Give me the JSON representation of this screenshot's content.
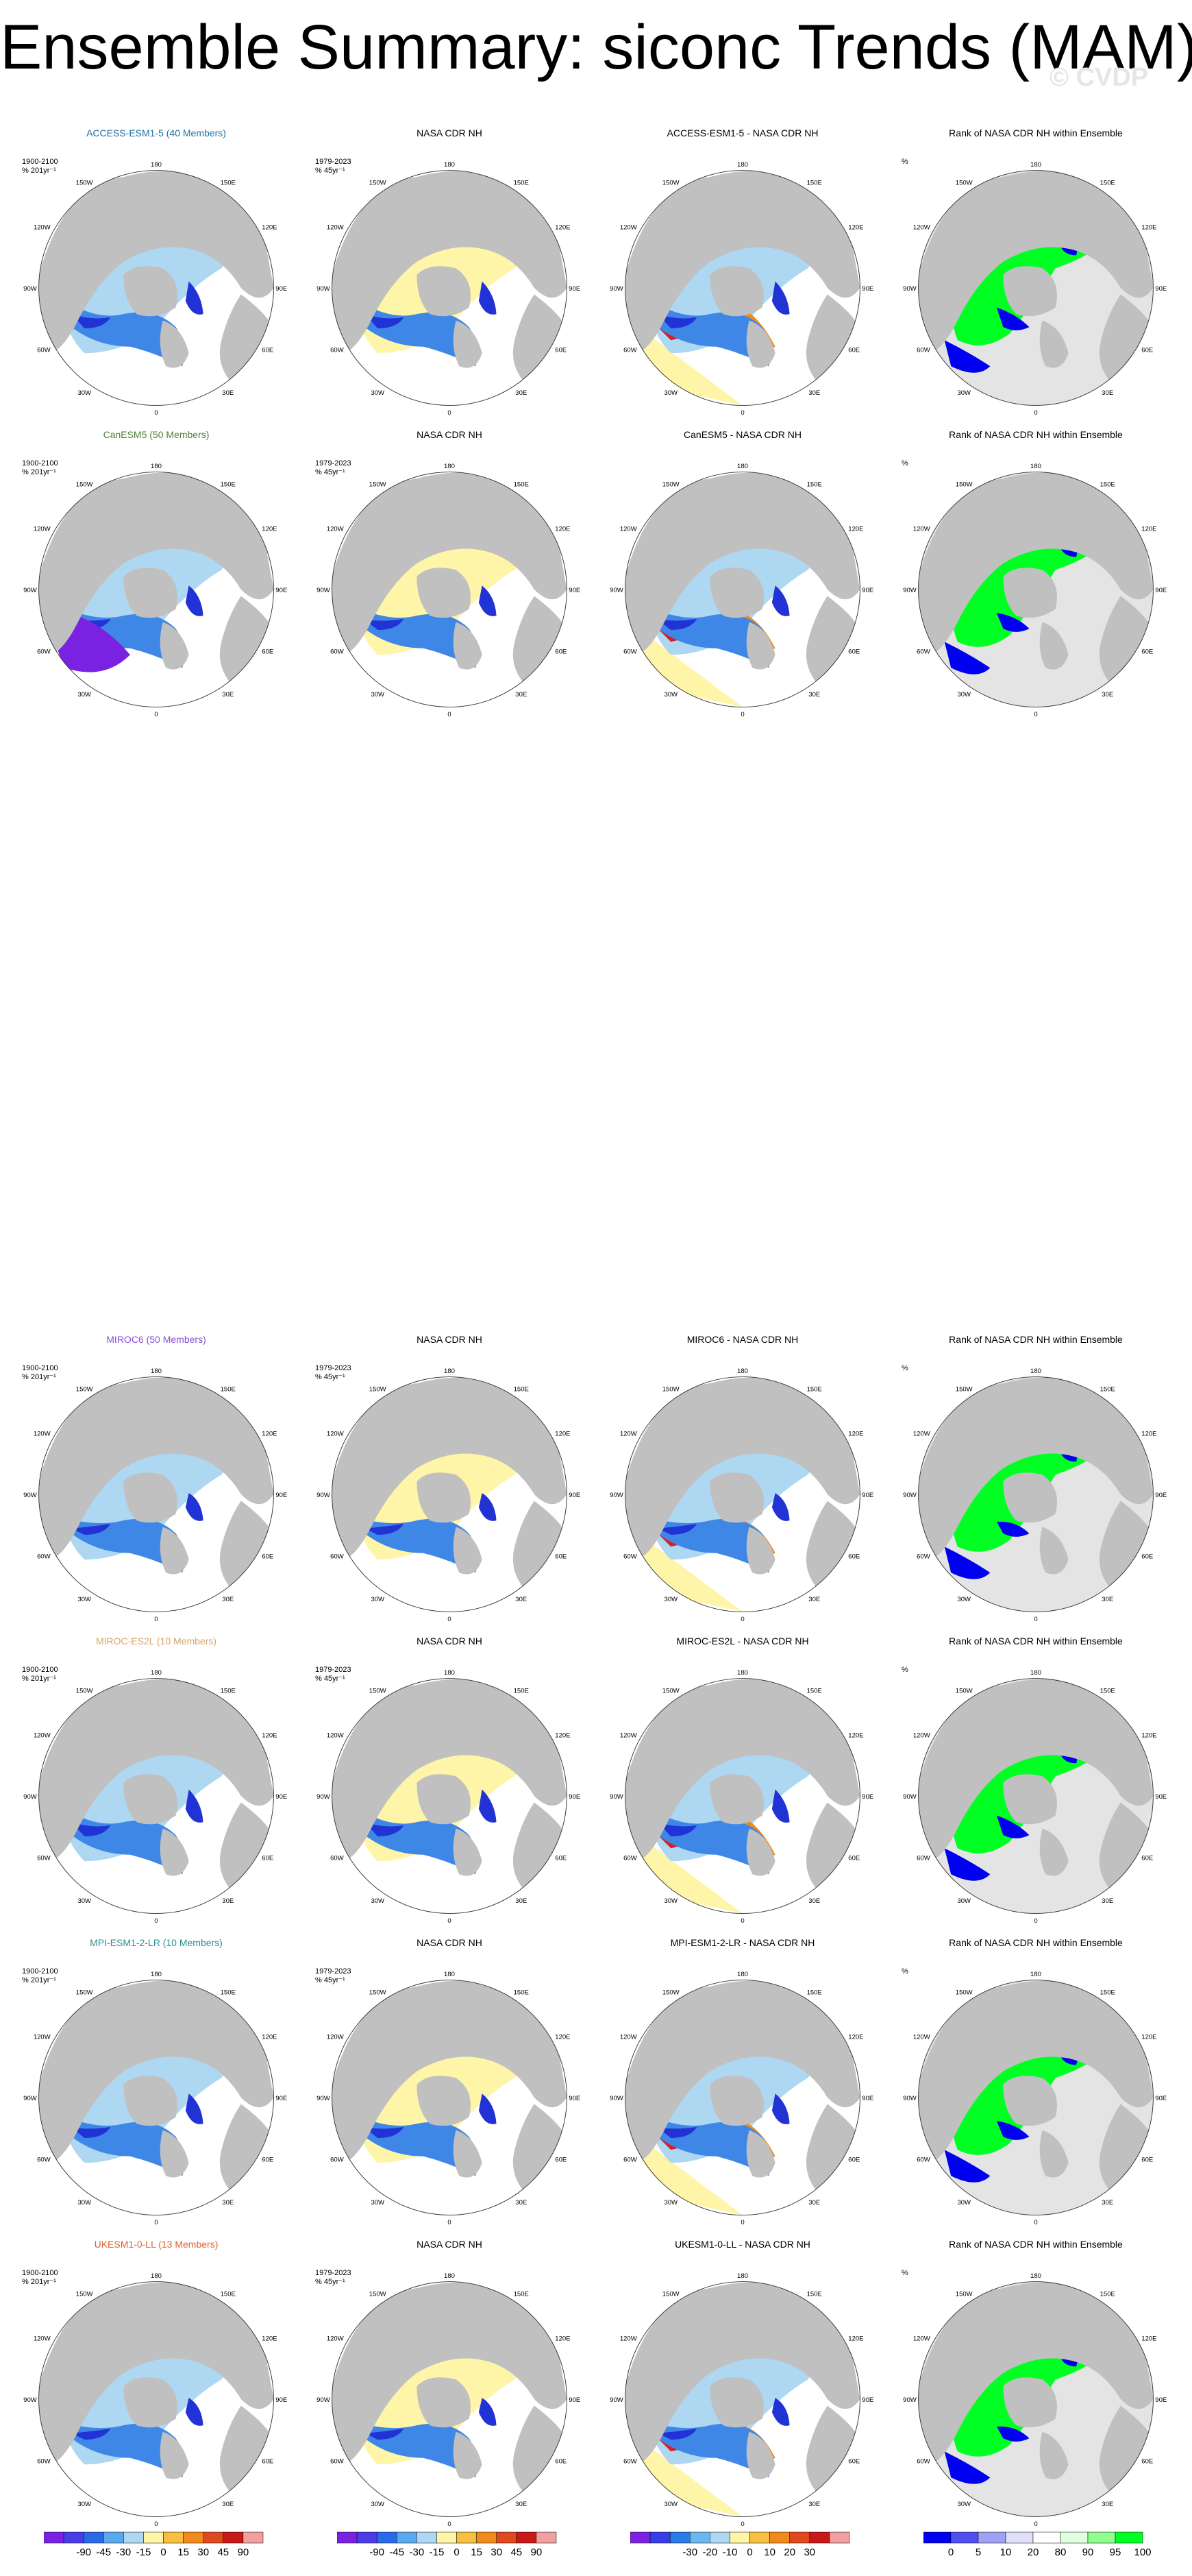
{
  "title": "Ensemble Summary: siconc Trends (MAM)",
  "watermark": "© CVDP",
  "colors": {
    "land": "#c0c0c0",
    "ocean_ring": "#ffffff",
    "light_blue": "#aed7f2",
    "mid_blue": "#3f87e6",
    "dark_blue": "#2233d6",
    "purple": "#7a22e2",
    "light_yellow": "#fff5a8",
    "orange": "#f08a1a",
    "red": "#d82020",
    "green": "#00ff22",
    "rank_blue": "#0000f0",
    "rank_gray": "#e4e4e4"
  },
  "lon_labels": [
    "180",
    "150W",
    "150E",
    "120W",
    "120E",
    "90W",
    "90E",
    "60W",
    "60E",
    "30W",
    "30E",
    "0"
  ],
  "rows": [
    {
      "model": "ACCESS-ESM1-5 (40 Members)",
      "model_color": "#1b6fa0",
      "model_info": "1900-2100\n% 201yr⁻¹",
      "obs_title": "NASA CDR NH",
      "obs_info": "1979-2023\n% 45yr⁻¹",
      "diff_title": "ACCESS-ESM1-5 - NASA CDR NH",
      "rank_title": "Rank of NASA CDR NH within Ensemble",
      "rank_info": "%"
    },
    {
      "model": "CanESM5 (50 Members)",
      "model_color": "#4f7f3a",
      "model_info": "1900-2100\n% 201yr⁻¹",
      "obs_title": "NASA CDR NH",
      "obs_info": "1979-2023\n% 45yr⁻¹",
      "diff_title": "CanESM5 - NASA CDR NH",
      "rank_title": "Rank of NASA CDR NH within Ensemble",
      "rank_info": "%"
    },
    {
      "model": "MIROC6 (50 Members)",
      "model_color": "#8a4fd8",
      "model_info": "1900-2100\n% 201yr⁻¹",
      "obs_title": "NASA CDR NH",
      "obs_info": "1979-2023\n% 45yr⁻¹",
      "diff_title": "MIROC6 - NASA CDR NH",
      "rank_title": "Rank of NASA CDR NH within Ensemble",
      "rank_info": "%"
    },
    {
      "model": "MIROC-ES2L (10 Members)",
      "model_color": "#d8a46a",
      "model_info": "1900-2100\n% 201yr⁻¹",
      "obs_title": "NASA CDR NH",
      "obs_info": "1979-2023\n% 45yr⁻¹",
      "diff_title": "MIROC-ES2L - NASA CDR NH",
      "rank_title": "Rank of NASA CDR NH within Ensemble",
      "rank_info": "%"
    },
    {
      "model": "MPI-ESM1-2-LR (10 Members)",
      "model_color": "#2f8f8f",
      "model_info": "1900-2100\n% 201yr⁻¹",
      "obs_title": "NASA CDR NH",
      "obs_info": "1979-2023\n% 45yr⁻¹",
      "diff_title": "MPI-ESM1-2-LR - NASA CDR NH",
      "rank_title": "Rank of NASA CDR NH within Ensemble",
      "rank_info": "%"
    },
    {
      "model": "UKESM1-0-LL (13 Members)",
      "model_color": "#e0622a",
      "model_info": "1900-2100\n% 201yr⁻¹",
      "obs_title": "NASA CDR NH",
      "obs_info": "1979-2023\n% 45yr⁻¹",
      "diff_title": "UKESM1-0-LL - NASA CDR NH",
      "rank_title": "Rank of NASA CDR NH within Ensemble",
      "rank_info": "%"
    }
  ],
  "colorbars": [
    {
      "name": "trend-colorbar-model",
      "labels": [
        "-90",
        "-45",
        "-30",
        "-15",
        "0",
        "15",
        "30",
        "45",
        "90"
      ],
      "colors": [
        "#7a22e2",
        "#4a3ce8",
        "#2a6ae8",
        "#5aa8ee",
        "#aed7f2",
        "#fff5a8",
        "#f8c040",
        "#f08a1a",
        "#e04820",
        "#c81818",
        "#f0a0a0"
      ]
    },
    {
      "name": "trend-colorbar-obs",
      "labels": [
        "-90",
        "-45",
        "-30",
        "-15",
        "0",
        "15",
        "30",
        "45",
        "90"
      ],
      "colors": [
        "#7a22e2",
        "#4a3ce8",
        "#2a6ae8",
        "#5aa8ee",
        "#aed7f2",
        "#fff5a8",
        "#f8c040",
        "#f08a1a",
        "#e04820",
        "#c81818",
        "#f0a0a0"
      ]
    },
    {
      "name": "difference-colorbar",
      "labels": [
        "-30",
        "-20",
        "-10",
        "0",
        "10",
        "20",
        "30"
      ],
      "colors": [
        "#7a22e2",
        "#3a3ce8",
        "#2a7ae8",
        "#6ab8f0",
        "#aed7f2",
        "#fff5a8",
        "#f8c040",
        "#f08a1a",
        "#e04820",
        "#c81818",
        "#f0a0a0"
      ]
    },
    {
      "name": "rank-colorbar",
      "labels": [
        "0",
        "5",
        "10",
        "20",
        "80",
        "90",
        "95",
        "100"
      ],
      "colors": [
        "#0000f0",
        "#5050f0",
        "#a0a0f4",
        "#e0e0f8",
        "#ffffff",
        "#e0ffe0",
        "#90ff90",
        "#00ff22"
      ]
    }
  ]
}
